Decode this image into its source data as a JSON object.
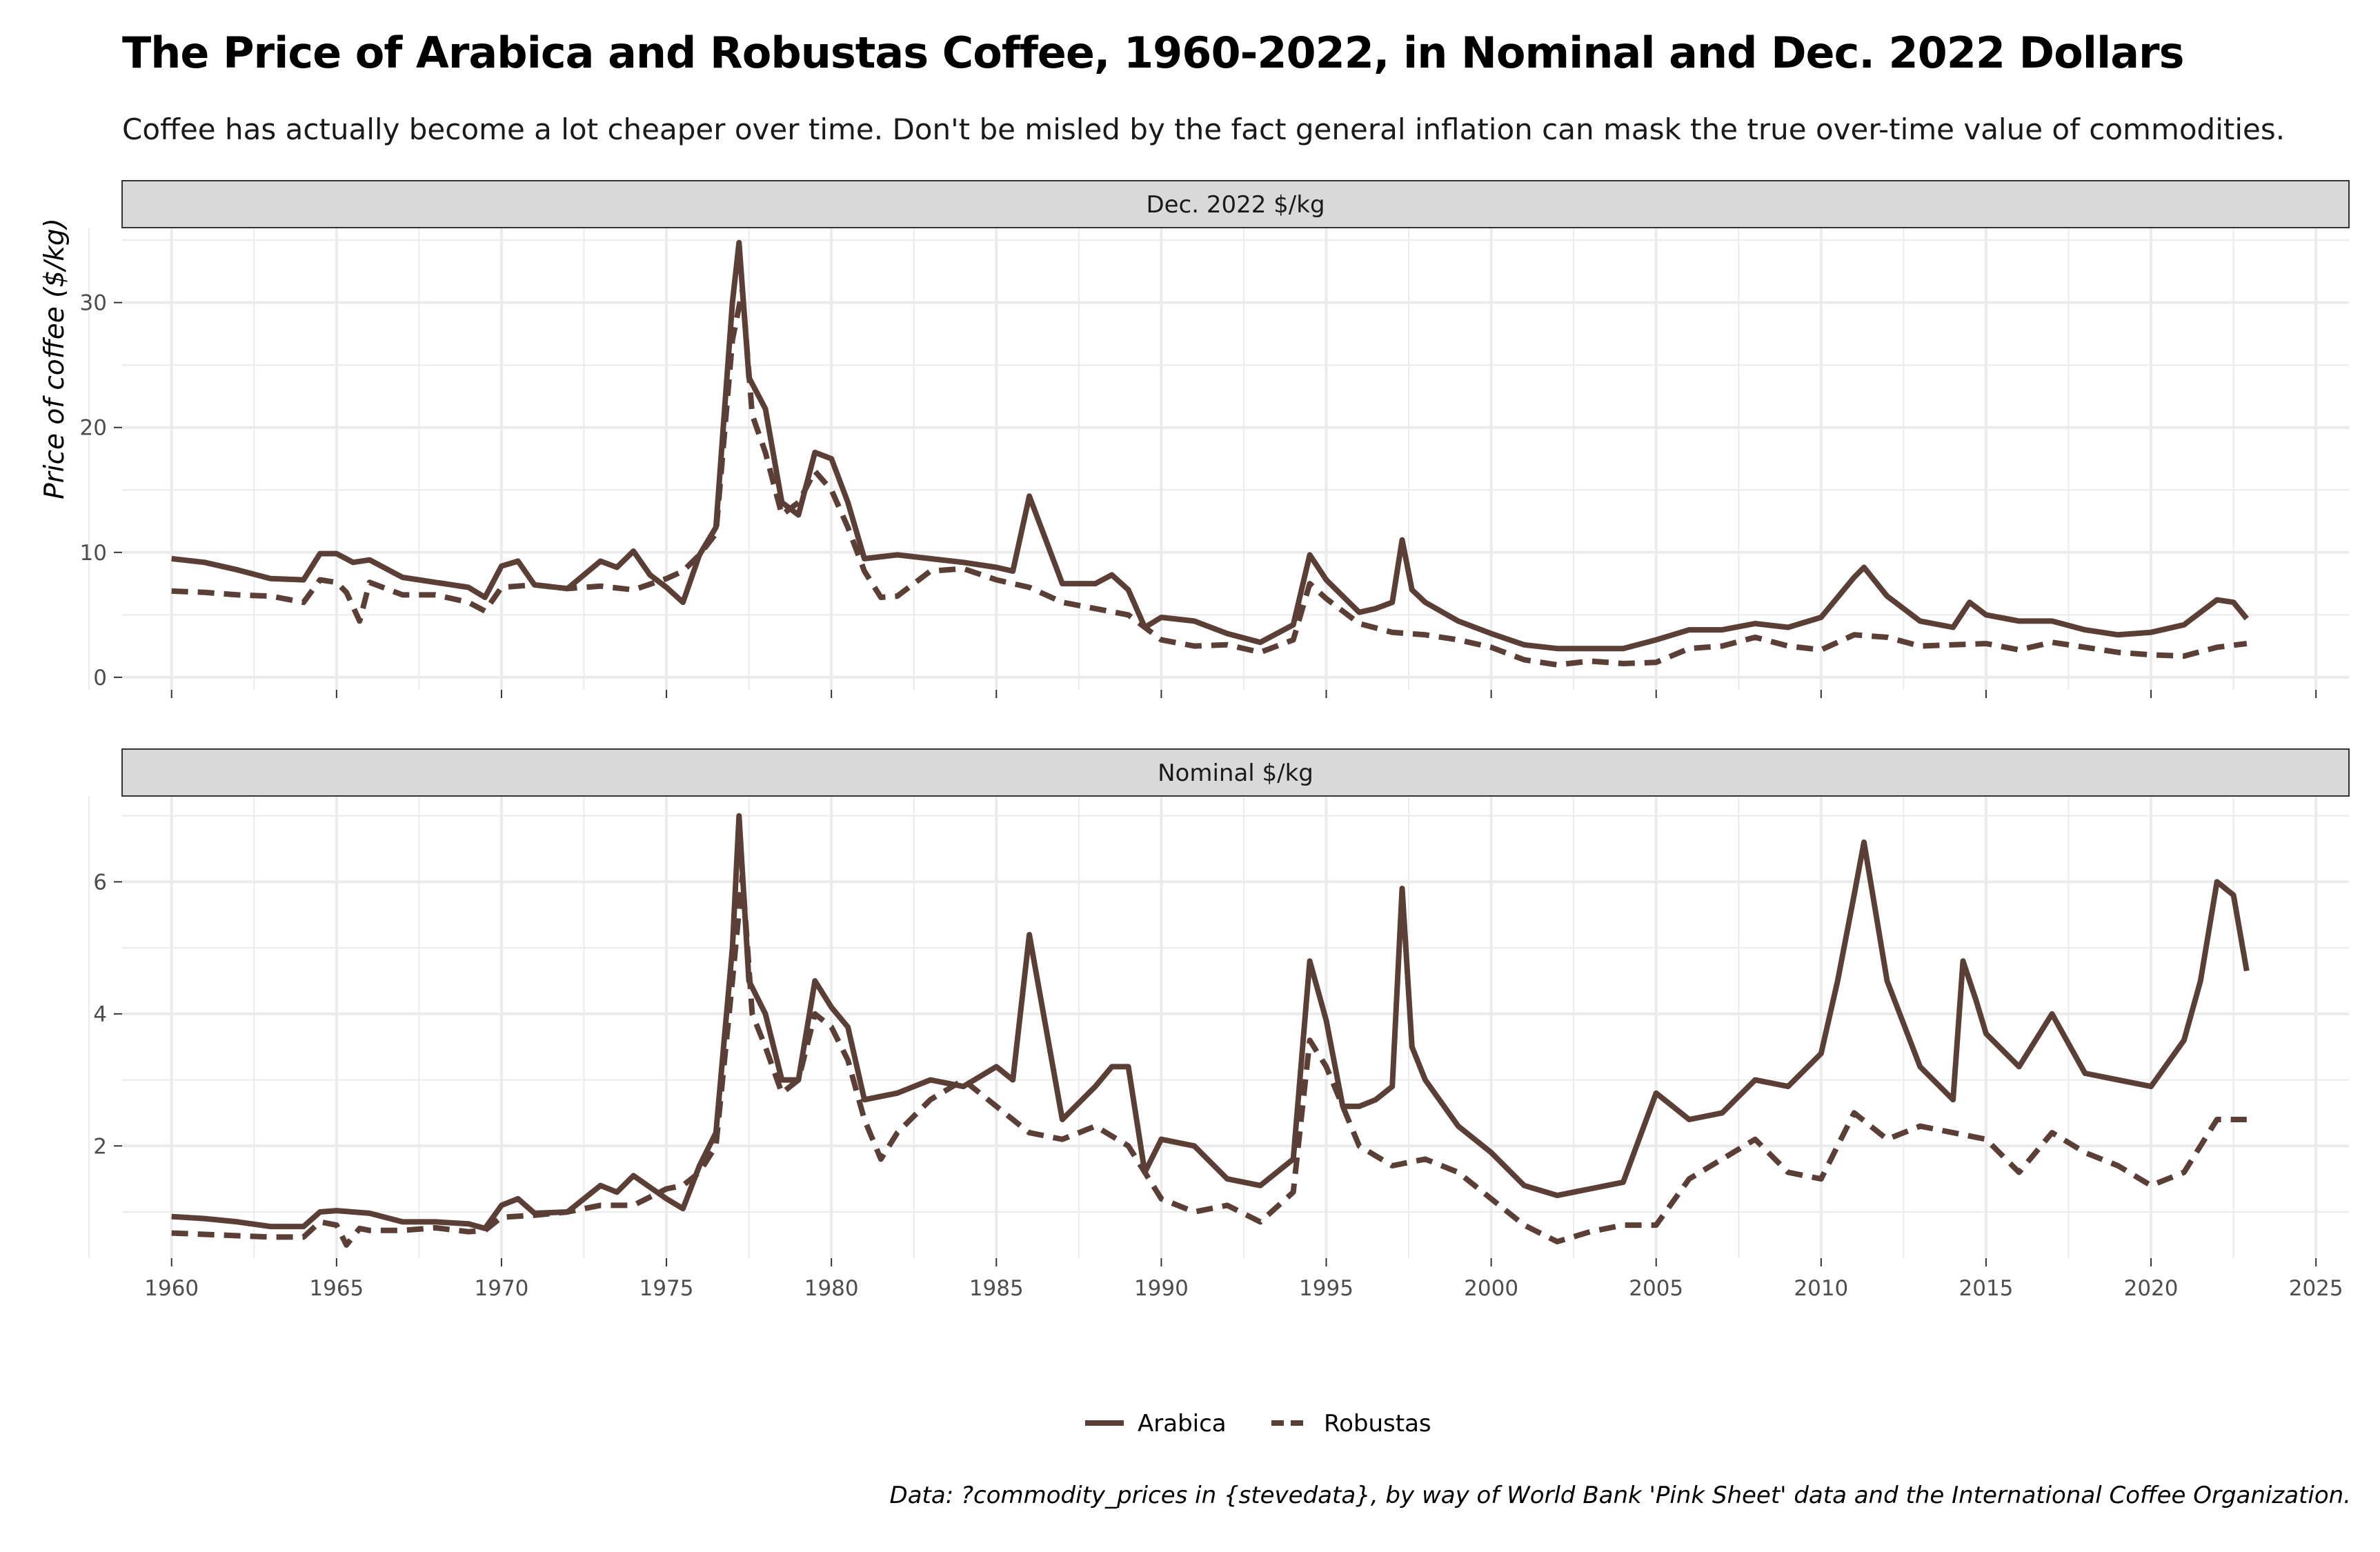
{
  "title": "The Price of Arabica and Robustas Coffee, 1960-2022, in Nominal and Dec. 2022 Dollars",
  "subtitle": "Coffee has actually become a lot cheaper over time. Don't be misled by the fact general inflation can mask the true over-time value of commodities.",
  "caption": "Data: ?commodity_prices in {stevedata}, by way of World Bank 'Pink Sheet' data and the International Coffee Organization.",
  "colors": {
    "line": "#5b3f37",
    "strip": "#d9d9d9",
    "grid": "#ebebeb",
    "axis_text": "#4d4d4d"
  },
  "chart_data": {
    "type": "line",
    "ylabel": "Price of coffee ($/kg)",
    "xlabel": "",
    "x_ticks": [
      1960,
      1965,
      1970,
      1975,
      1980,
      1985,
      1990,
      1995,
      2000,
      2005,
      2010,
      2015,
      2020,
      2025
    ],
    "xlim": [
      1958.5,
      2026
    ],
    "grid": true,
    "legend": {
      "position": "bottom",
      "entries": [
        {
          "name": "Arabica",
          "style": "solid"
        },
        {
          "name": "Robustas",
          "style": "dashed"
        }
      ]
    },
    "panels": [
      {
        "strip": "Dec. 2022 $/kg",
        "ylim": [
          -1,
          36
        ],
        "y_ticks": [
          0,
          10,
          20,
          30
        ],
        "series": [
          {
            "name": "Arabica",
            "style": "solid",
            "x": [
              1960,
              1961,
              1962,
              1963,
              1964,
              1964.5,
              1965,
              1965.5,
              1966,
              1967,
              1968,
              1969,
              1969.5,
              1970,
              1970.5,
              1971,
              1972,
              1973,
              1973.5,
              1974,
              1974.5,
              1975,
              1975.5,
              1976,
              1976.5,
              1977,
              1977.2,
              1977.5,
              1978,
              1978.5,
              1979,
              1979.5,
              1980,
              1980.5,
              1981,
              1982,
              1983,
              1984,
              1985,
              1985.5,
              1986,
              1986.5,
              1987,
              1988,
              1988.5,
              1989,
              1989.5,
              1990,
              1991,
              1992,
              1993,
              1994,
              1994.5,
              1995,
              1995.5,
              1996,
              1996.5,
              1997,
              1997.3,
              1997.6,
              1998,
              1999,
              2000,
              2001,
              2002,
              2003,
              2004,
              2005,
              2006,
              2007,
              2008,
              2009,
              2010,
              2011,
              2011.3,
              2012,
              2013,
              2014,
              2014.5,
              2015,
              2016,
              2017,
              2018,
              2019,
              2020,
              2021,
              2022,
              2022.5,
              2022.9
            ],
            "y": [
              9.5,
              9.2,
              8.6,
              7.9,
              7.8,
              9.9,
              9.9,
              9.2,
              9.4,
              8.0,
              7.6,
              7.2,
              6.4,
              8.9,
              9.3,
              7.4,
              7.1,
              9.3,
              8.8,
              10.1,
              8.2,
              7.2,
              6.0,
              9.8,
              12.0,
              30.0,
              34.8,
              24.0,
              21.5,
              14.0,
              13.0,
              18.0,
              17.5,
              14.0,
              9.5,
              9.8,
              9.5,
              9.2,
              8.8,
              8.5,
              14.5,
              11.0,
              7.5,
              7.5,
              8.2,
              7.0,
              4.0,
              4.8,
              4.5,
              3.5,
              2.8,
              4.2,
              9.8,
              7.8,
              6.5,
              5.2,
              5.5,
              6.0,
              11.0,
              7.0,
              6.0,
              4.5,
              3.5,
              2.6,
              2.3,
              2.3,
              2.3,
              3.0,
              3.8,
              3.8,
              4.3,
              4.0,
              4.8,
              8.0,
              8.8,
              6.5,
              4.5,
              4.0,
              6.0,
              5.0,
              4.5,
              4.5,
              3.8,
              3.4,
              3.6,
              4.2,
              6.2,
              6.0,
              4.7
            ]
          },
          {
            "name": "Robustas",
            "style": "dashed",
            "x": [
              1960,
              1961,
              1962,
              1963,
              1964,
              1964.5,
              1965,
              1965.3,
              1965.7,
              1966,
              1967,
              1968,
              1969,
              1969.5,
              1970,
              1971,
              1972,
              1973,
              1974,
              1975,
              1975.5,
              1976,
              1976.5,
              1977,
              1977.3,
              1977.6,
              1978,
              1978.5,
              1979,
              1979.5,
              1980,
              1980.5,
              1981,
              1981.5,
              1982,
              1983,
              1984,
              1985,
              1986,
              1987,
              1988,
              1989,
              1990,
              1991,
              1992,
              1993,
              1994,
              1994.5,
              1995,
              1996,
              1997,
              1998,
              1999,
              2000,
              2001,
              2002,
              2003,
              2004,
              2005,
              2006,
              2007,
              2008,
              2009,
              2010,
              2011,
              2012,
              2013,
              2014,
              2015,
              2016,
              2017,
              2018,
              2019,
              2020,
              2021,
              2022,
              2022.9
            ],
            "y": [
              6.9,
              6.8,
              6.6,
              6.5,
              6.0,
              7.8,
              7.6,
              6.8,
              4.5,
              7.6,
              6.6,
              6.6,
              6.0,
              5.3,
              7.2,
              7.4,
              7.1,
              7.3,
              7.0,
              7.9,
              8.5,
              9.8,
              11.5,
              27.0,
              31.0,
              21.0,
              18.0,
              13.0,
              14.0,
              16.5,
              15.0,
              12.0,
              8.5,
              6.4,
              6.5,
              8.5,
              8.7,
              7.8,
              7.2,
              6.0,
              5.5,
              5.0,
              3.0,
              2.5,
              2.6,
              2.0,
              3.0,
              7.5,
              6.3,
              4.3,
              3.6,
              3.4,
              3.0,
              2.4,
              1.4,
              1.0,
              1.3,
              1.1,
              1.2,
              2.3,
              2.5,
              3.2,
              2.5,
              2.2,
              3.4,
              3.2,
              2.5,
              2.6,
              2.7,
              2.2,
              2.8,
              2.4,
              2.0,
              1.8,
              1.7,
              2.4,
              2.7
            ]
          }
        ]
      },
      {
        "strip": "Nominal $/kg",
        "ylim": [
          0.3,
          7.3
        ],
        "y_ticks": [
          2,
          4,
          6
        ],
        "series": [
          {
            "name": "Arabica",
            "style": "solid",
            "x": [
              1960,
              1961,
              1962,
              1963,
              1964,
              1964.5,
              1965,
              1966,
              1967,
              1968,
              1969,
              1969.5,
              1970,
              1970.5,
              1971,
              1972,
              1973,
              1973.5,
              1974,
              1975,
              1975.5,
              1976,
              1976.5,
              1977,
              1977.2,
              1977.5,
              1978,
              1978.5,
              1979,
              1979.5,
              1980,
              1980.5,
              1981,
              1982,
              1983,
              1984,
              1985,
              1985.5,
              1986,
              1986.5,
              1987,
              1988,
              1988.5,
              1989,
              1989.5,
              1990,
              1991,
              1992,
              1993,
              1994,
              1994.5,
              1995,
              1995.5,
              1996,
              1996.5,
              1997,
              1997.3,
              1997.6,
              1998,
              1999,
              2000,
              2001,
              2002,
              2003,
              2004,
              2005,
              2006,
              2007,
              2008,
              2009,
              2010,
              2010.5,
              2011,
              2011.3,
              2012,
              2013,
              2014,
              2014.3,
              2014.7,
              2015,
              2016,
              2017,
              2018,
              2019,
              2020,
              2021,
              2021.5,
              2022,
              2022.5,
              2022.9
            ],
            "y": [
              0.93,
              0.9,
              0.85,
              0.78,
              0.78,
              1.0,
              1.02,
              0.98,
              0.85,
              0.85,
              0.82,
              0.75,
              1.1,
              1.2,
              0.98,
              1.0,
              1.4,
              1.3,
              1.55,
              1.2,
              1.05,
              1.7,
              2.2,
              5.0,
              7.0,
              4.5,
              4.0,
              3.0,
              3.0,
              4.5,
              4.1,
              3.8,
              2.7,
              2.8,
              3.0,
              2.9,
              3.2,
              3.0,
              5.2,
              3.8,
              2.4,
              2.9,
              3.2,
              3.2,
              1.6,
              2.1,
              2.0,
              1.5,
              1.4,
              1.8,
              4.8,
              3.9,
              2.6,
              2.6,
              2.7,
              2.9,
              5.9,
              3.5,
              3.0,
              2.3,
              1.9,
              1.4,
              1.25,
              1.35,
              1.45,
              2.8,
              2.4,
              2.5,
              3.0,
              2.9,
              3.4,
              4.5,
              5.8,
              6.6,
              4.5,
              3.2,
              2.7,
              4.8,
              4.2,
              3.7,
              3.2,
              4.0,
              3.1,
              3.0,
              2.9,
              3.6,
              4.5,
              6.0,
              5.8,
              4.65
            ]
          },
          {
            "name": "Robustas",
            "style": "dashed",
            "x": [
              1960,
              1961,
              1962,
              1963,
              1964,
              1964.5,
              1965,
              1965.3,
              1965.7,
              1966,
              1967,
              1968,
              1969,
              1969.5,
              1970,
              1971,
              1972,
              1973,
              1974,
              1975,
              1975.5,
              1976,
              1976.5,
              1977,
              1977.3,
              1977.6,
              1978,
              1978.5,
              1979,
              1979.5,
              1980,
              1980.5,
              1981,
              1981.5,
              1982,
              1983,
              1984,
              1985,
              1986,
              1987,
              1988,
              1989,
              1990,
              1991,
              1992,
              1993,
              1994,
              1994.5,
              1995,
              1996,
              1997,
              1998,
              1999,
              2000,
              2001,
              2002,
              2003,
              2004,
              2005,
              2006,
              2007,
              2008,
              2009,
              2010,
              2011,
              2012,
              2013,
              2014,
              2015,
              2016,
              2017,
              2018,
              2019,
              2020,
              2021,
              2022,
              2022.9
            ],
            "y": [
              0.68,
              0.66,
              0.64,
              0.62,
              0.62,
              0.85,
              0.8,
              0.5,
              0.75,
              0.72,
              0.72,
              0.76,
              0.7,
              0.72,
              0.92,
              0.95,
              1.0,
              1.1,
              1.1,
              1.35,
              1.4,
              1.6,
              2.0,
              4.5,
              6.1,
              4.0,
              3.5,
              2.8,
              3.0,
              4.0,
              3.8,
              3.3,
              2.4,
              1.8,
              2.2,
              2.7,
              3.0,
              2.6,
              2.2,
              2.1,
              2.3,
              2.0,
              1.2,
              1.0,
              1.1,
              0.85,
              1.3,
              3.6,
              3.2,
              2.0,
              1.7,
              1.8,
              1.6,
              1.2,
              0.8,
              0.55,
              0.7,
              0.8,
              0.8,
              1.5,
              1.8,
              2.1,
              1.6,
              1.5,
              2.5,
              2.1,
              2.3,
              2.2,
              2.1,
              1.6,
              2.2,
              1.9,
              1.7,
              1.4,
              1.6,
              2.4,
              2.4
            ]
          }
        ]
      }
    ]
  }
}
